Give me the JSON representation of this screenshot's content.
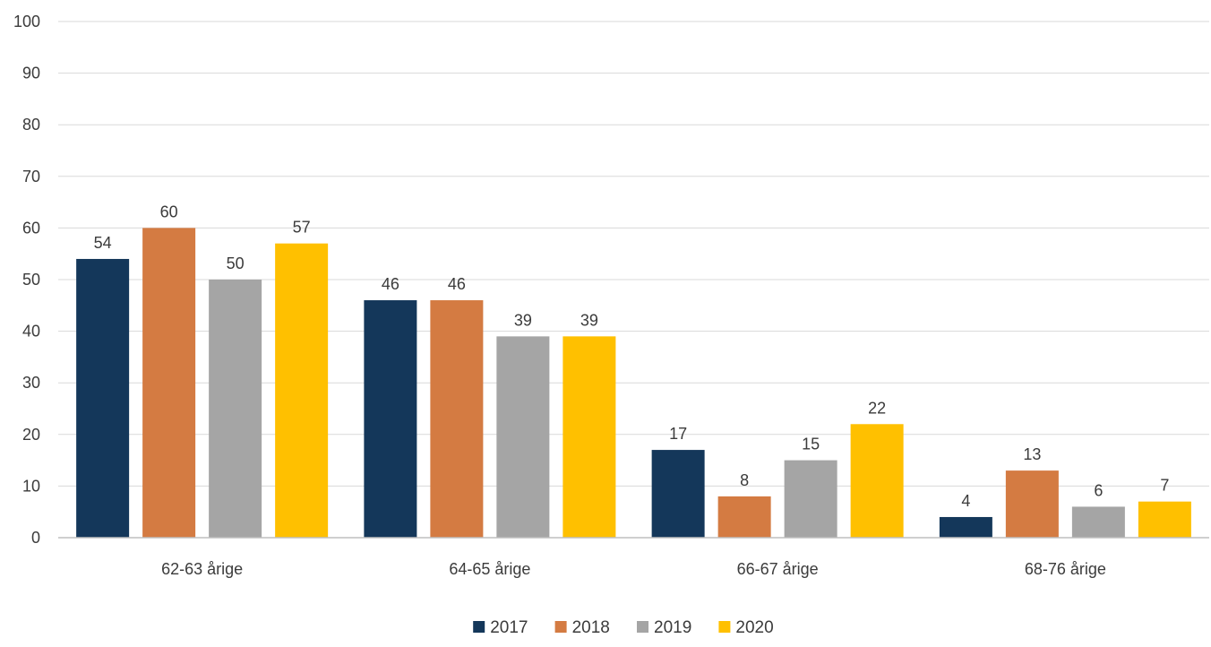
{
  "chart_data": {
    "type": "bar",
    "title": "",
    "xlabel": "",
    "ylabel": "",
    "ylim": [
      0,
      100
    ],
    "yticks": [
      0,
      10,
      20,
      30,
      40,
      50,
      60,
      70,
      80,
      90,
      100
    ],
    "grid": true,
    "legend_position": "bottom",
    "categories": [
      "62-63 årige",
      "64-65 årige",
      "66-67 årige",
      "68-76 årige"
    ],
    "series": [
      {
        "name": "2017",
        "color": "#14375a",
        "values": [
          54,
          46,
          17,
          4
        ]
      },
      {
        "name": "2018",
        "color": "#d47b42",
        "values": [
          60,
          46,
          8,
          13
        ]
      },
      {
        "name": "2019",
        "color": "#a5a5a5",
        "values": [
          50,
          39,
          15,
          6
        ]
      },
      {
        "name": "2020",
        "color": "#ffc000",
        "values": [
          57,
          39,
          22,
          7
        ]
      }
    ],
    "gridline_color": "#d9d9d9",
    "axis_color": "#bfbfbf"
  }
}
